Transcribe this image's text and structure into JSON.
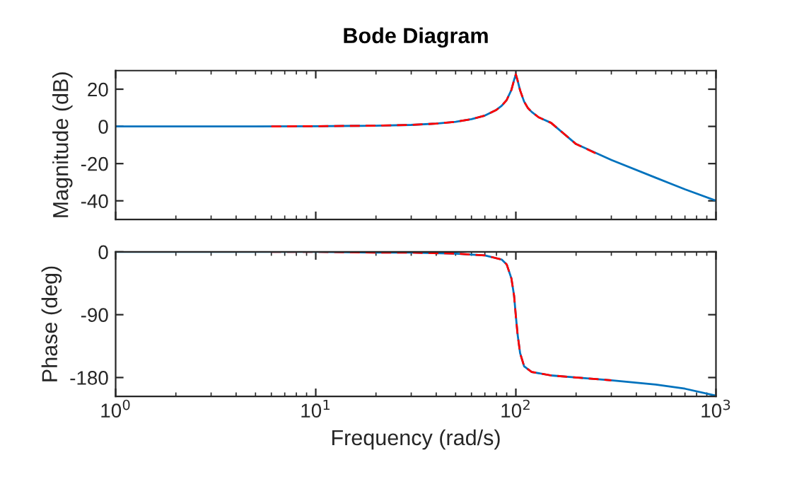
{
  "chart_data": [
    {
      "type": "line",
      "title": "Bode Diagram",
      "ylabel": "Magnitude (dB)",
      "log": "x",
      "xlim": [
        1,
        1000
      ],
      "xticks": [
        {
          "value": 1,
          "label": null
        },
        {
          "value": 10,
          "label": null
        },
        {
          "value": 100,
          "label": null
        },
        {
          "value": 1000,
          "label": null
        }
      ],
      "ylim": [
        -50,
        30
      ],
      "yticks": [
        -40,
        -20,
        0,
        20
      ],
      "tick_labels": "y",
      "series": [
        {
          "color": "#0072bd",
          "line_style": "solid",
          "x": [
            1,
            5,
            10,
            20,
            30,
            40,
            50,
            60,
            70,
            80,
            85,
            90,
            95,
            98,
            100,
            102,
            105,
            110,
            115,
            120,
            130,
            150,
            200,
            300,
            500,
            700,
            1000
          ],
          "values": [
            0,
            0,
            0.1,
            0.4,
            0.8,
            1.5,
            2.5,
            3.9,
            5.8,
            8.9,
            11.1,
            14.2,
            19.6,
            25,
            28,
            24.7,
            19.4,
            13.3,
            9.8,
            7.8,
            4.9,
            1.9,
            -9.5,
            -18,
            -27.6,
            -33.8,
            -39.9
          ]
        },
        {
          "color": "#ff0000",
          "line_style": "dashed",
          "x": [
            6,
            10,
            20,
            30,
            40,
            50,
            60,
            70,
            80,
            85,
            90,
            95,
            98,
            100,
            102,
            105,
            110,
            115,
            120,
            130,
            150,
            200,
            250
          ],
          "values": [
            0,
            0.1,
            0.4,
            0.8,
            1.5,
            2.5,
            3.9,
            5.8,
            8.9,
            11.1,
            14.2,
            19.6,
            25,
            28,
            24.7,
            19.4,
            13.3,
            9.8,
            7.8,
            4.9,
            1.9,
            -9.5,
            -14.4
          ]
        }
      ]
    },
    {
      "type": "line",
      "xlabel": "Frequency (rad/s)",
      "ylabel": "Phase (deg)",
      "log": "x",
      "xlim": [
        1,
        1000
      ],
      "xticks": [
        {
          "value": 1,
          "label": "10$^{0}$"
        },
        {
          "value": 10,
          "label": "10$^{1}$"
        },
        {
          "value": 100,
          "label": "10$^{2}$"
        },
        {
          "value": 1000,
          "label": "10$^{3}$"
        }
      ],
      "ylim": [
        -207,
        0
      ],
      "yticks": [
        -180,
        -90,
        0
      ],
      "series": [
        {
          "color": "#0072bd",
          "line_style": "solid",
          "x": [
            1,
            5,
            10,
            20,
            30,
            50,
            70,
            85,
            90,
            95,
            98,
            100,
            102,
            105,
            110,
            120,
            150,
            200,
            300,
            500,
            700,
            1000
          ],
          "values": [
            0,
            0,
            0,
            -1,
            -1,
            -2.5,
            -5,
            -11,
            -18,
            -38,
            -63,
            -92,
            -118,
            -145,
            -164,
            -172,
            -177,
            -180,
            -184,
            -190,
            -196,
            -206
          ]
        },
        {
          "color": "#ff0000",
          "line_style": "dashed",
          "x": [
            6,
            10,
            20,
            30,
            50,
            70,
            85,
            90,
            95,
            98,
            100,
            102,
            105,
            110,
            120,
            150,
            200,
            300
          ],
          "values": [
            0,
            0,
            -1,
            -1,
            -2.5,
            -5,
            -11,
            -18,
            -38,
            -63,
            -92,
            -118,
            -145,
            -164,
            -172,
            -177,
            -180,
            -184
          ]
        }
      ]
    }
  ]
}
